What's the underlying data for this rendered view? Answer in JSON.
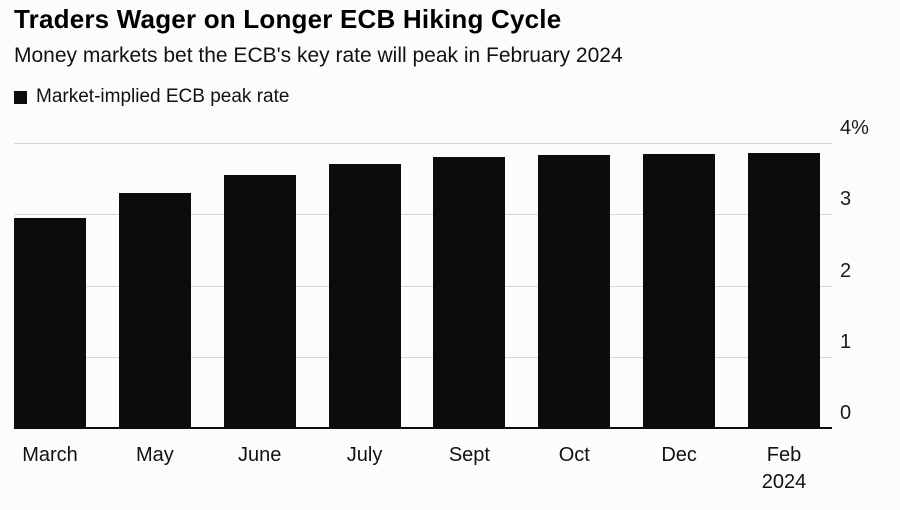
{
  "header": {
    "title": "Traders Wager on Longer ECB Hiking Cycle",
    "subtitle": "Money markets bet the ECB's key rate will peak in February 2024"
  },
  "legend": {
    "label": "Market-implied ECB peak rate",
    "swatch_color": "#0c0c0c"
  },
  "chart_data": {
    "type": "bar",
    "title": "Traders Wager on Longer ECB Hiking Cycle",
    "subtitle": "Money markets bet the ECB's key rate will peak in February 2024",
    "series_name": "Market-implied ECB peak rate",
    "categories": [
      {
        "label": "March",
        "sublabel": ""
      },
      {
        "label": "May",
        "sublabel": ""
      },
      {
        "label": "June",
        "sublabel": ""
      },
      {
        "label": "July",
        "sublabel": ""
      },
      {
        "label": "Sept",
        "sublabel": ""
      },
      {
        "label": "Oct",
        "sublabel": ""
      },
      {
        "label": "Dec",
        "sublabel": ""
      },
      {
        "label": "Feb",
        "sublabel": "2024"
      }
    ],
    "values": [
      2.95,
      3.3,
      3.55,
      3.7,
      3.8,
      3.83,
      3.85,
      3.86
    ],
    "xlabel": "",
    "ylabel": "",
    "ylim": [
      0,
      4
    ],
    "yticks": [
      {
        "value": 4,
        "label": "4%"
      },
      {
        "value": 3,
        "label": "3"
      },
      {
        "value": 2,
        "label": "2"
      },
      {
        "value": 1,
        "label": "1"
      },
      {
        "value": 0,
        "label": "0"
      }
    ],
    "bar_color": "#0c0c0c",
    "grid": true,
    "gridline_color": "#d8d8d6",
    "legend_position": "top-left",
    "y_axis_side": "right"
  }
}
